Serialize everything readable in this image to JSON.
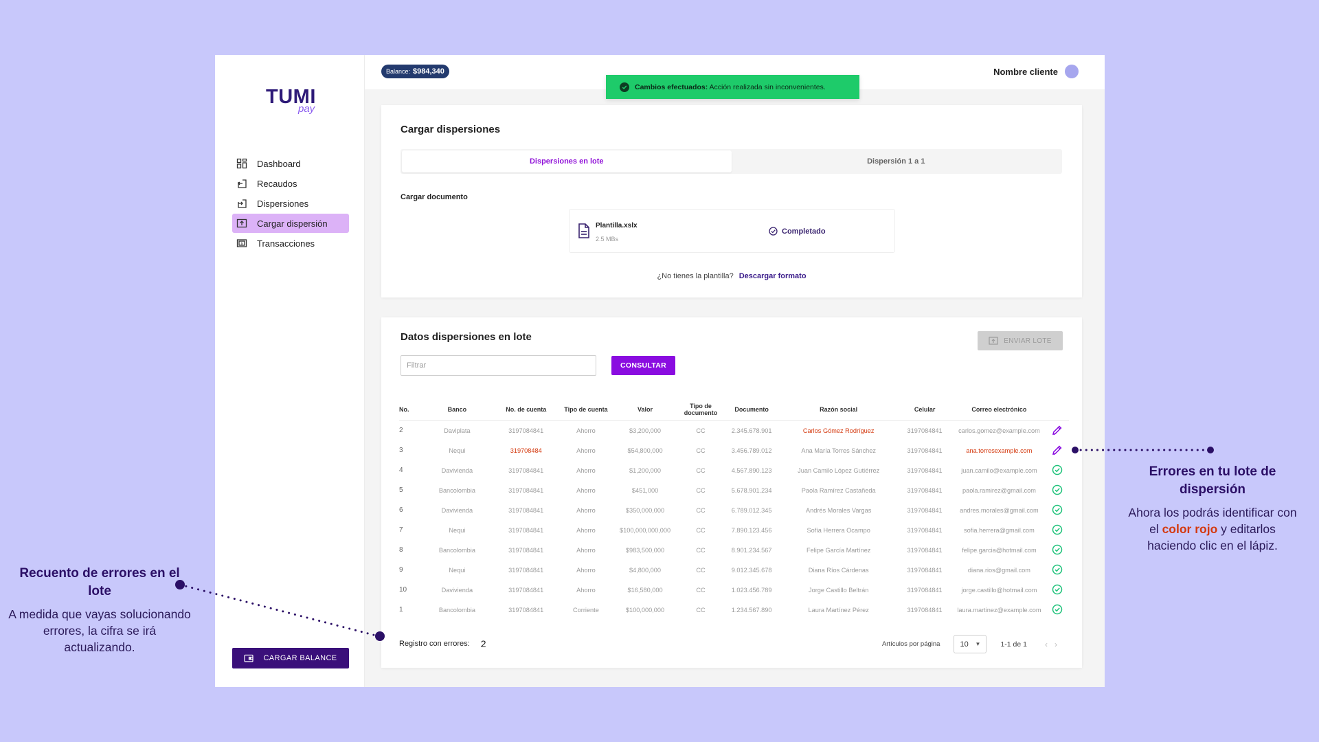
{
  "brand": {
    "name": "TUMI",
    "sub": "pay"
  },
  "sidebar": {
    "items": [
      {
        "label": "Dashboard",
        "icon": "grid-icon",
        "active": false
      },
      {
        "label": "Recaudos",
        "icon": "inbox-arrow-icon",
        "active": false
      },
      {
        "label": "Dispersiones",
        "icon": "outbox-arrow-icon",
        "active": false
      },
      {
        "label": "Cargar dispersión",
        "icon": "upload-icon",
        "active": true
      },
      {
        "label": "Transacciones",
        "icon": "dollar-card-icon",
        "active": false
      }
    ],
    "cargar_balance_label": "CARGAR BALANCE"
  },
  "header": {
    "balance_label": "Balance:",
    "balance_value": "$984,340",
    "client_name": "Nombre cliente"
  },
  "toast": {
    "bold": "Cambios efectuados:",
    "text": "Acción realizada sin inconvenientes."
  },
  "upload": {
    "title": "Cargar dispersiones",
    "tabs": [
      {
        "label": "Dispersiones en lote",
        "active": true
      },
      {
        "label": "Dispersión 1 a 1",
        "active": false
      }
    ],
    "doc_label": "Cargar documento",
    "file": {
      "name": "Plantilla.xslx",
      "size": "2.5 MBs",
      "status": "Completado"
    },
    "template_question": "¿No tienes la plantilla?",
    "template_link": "Descargar formato"
  },
  "table_card": {
    "title": "Datos dispersiones en lote",
    "send_label": "ENVIAR LOTE",
    "filter_placeholder": "Filtrar",
    "consult_label": "CONSULTAR",
    "columns": [
      "No.",
      "Banco",
      "No. de cuenta",
      "Tipo de cuenta",
      "Valor",
      "Tipo de documento",
      "Documento",
      "Razón social",
      "Celular",
      "Correo electrónico",
      ""
    ],
    "rows": [
      {
        "no": "2",
        "banco": "Daviplata",
        "cuenta": "3197084841",
        "tipo": "Ahorro",
        "valor": "$3,200,000",
        "tdoc": "CC",
        "doc": "2.345.678.901",
        "razon": "Carlos Gómez Rodríguez",
        "celular": "3197084841",
        "correo": "carlos.gomez@example.com",
        "status": "error",
        "error_field": "razon"
      },
      {
        "no": "3",
        "banco": "Nequi",
        "cuenta": "319708484",
        "tipo": "Ahorro",
        "valor": "$54,800,000",
        "tdoc": "CC",
        "doc": "3.456.789.012",
        "razon": "Ana María Torres Sánchez",
        "celular": "3197084841",
        "correo": "ana.torresexample.com",
        "status": "error",
        "error_field": "cuenta,correo"
      },
      {
        "no": "4",
        "banco": "Davivienda",
        "cuenta": "3197084841",
        "tipo": "Ahorro",
        "valor": "$1,200,000",
        "tdoc": "CC",
        "doc": "4.567.890.123",
        "razon": "Juan Camilo López Gutiérrez",
        "celular": "3197084841",
        "correo": "juan.camilo@example.com",
        "status": "ok",
        "error_field": ""
      },
      {
        "no": "5",
        "banco": "Bancolombia",
        "cuenta": "3197084841",
        "tipo": "Ahorro",
        "valor": "$451,000",
        "tdoc": "CC",
        "doc": "5.678.901.234",
        "razon": "Paola Ramírez Castañeda",
        "celular": "3197084841",
        "correo": "paola.ramirez@gmail.com",
        "status": "ok",
        "error_field": ""
      },
      {
        "no": "6",
        "banco": "Davivienda",
        "cuenta": "3197084841",
        "tipo": "Ahorro",
        "valor": "$350,000,000",
        "tdoc": "CC",
        "doc": "6.789.012.345",
        "razon": "Andrés Morales Vargas",
        "celular": "3197084841",
        "correo": "andres.morales@gmail.com",
        "status": "ok",
        "error_field": ""
      },
      {
        "no": "7",
        "banco": "Nequi",
        "cuenta": "3197084841",
        "tipo": "Ahorro",
        "valor": "$100,000,000,000",
        "tdoc": "CC",
        "doc": "7.890.123.456",
        "razon": "Sofía Herrera Ocampo",
        "celular": "3197084841",
        "correo": "sofia.herrera@gmail.com",
        "status": "ok",
        "error_field": ""
      },
      {
        "no": "8",
        "banco": "Bancolombia",
        "cuenta": "3197084841",
        "tipo": "Ahorro",
        "valor": "$983,500,000",
        "tdoc": "CC",
        "doc": "8.901.234.567",
        "razon": "Felipe García Martínez",
        "celular": "3197084841",
        "correo": "felipe.garcia@hotmail.com",
        "status": "ok",
        "error_field": ""
      },
      {
        "no": "9",
        "banco": "Nequi",
        "cuenta": "3197084841",
        "tipo": "Ahorro",
        "valor": "$4,800,000",
        "tdoc": "CC",
        "doc": "9.012.345.678",
        "razon": "Diana Ríos Cárdenas",
        "celular": "3197084841",
        "correo": "diana.rios@gmail.com",
        "status": "ok",
        "error_field": ""
      },
      {
        "no": "10",
        "banco": "Davivienda",
        "cuenta": "3197084841",
        "tipo": "Ahorro",
        "valor": "$16,580,000",
        "tdoc": "CC",
        "doc": "1.023.456.789",
        "razon": "Jorge Castillo Beltrán",
        "celular": "3197084841",
        "correo": "jorge.castillo@hotmail.com",
        "status": "ok",
        "error_field": ""
      },
      {
        "no": "1",
        "banco": "Bancolombia",
        "cuenta": "3197084841",
        "tipo": "Corriente",
        "valor": "$100,000,000",
        "tdoc": "CC",
        "doc": "1.234.567.890",
        "razon": "Laura Martínez Pérez",
        "celular": "3197084841",
        "correo": "laura.martinez@example.com",
        "status": "ok",
        "error_field": ""
      }
    ],
    "error_label": "Registro con errores:",
    "error_count": "2",
    "per_page_label": "Artículos por página",
    "per_page_value": "10",
    "range": "1-1 de 1"
  },
  "annotations": {
    "left": {
      "title": "Recuento de errores en el lote",
      "body": "A medida que vayas solucionando errores, la cifra se irá actualizando."
    },
    "right": {
      "title": "Errores en tu lote de dispersión",
      "body_before": "Ahora los podrás identificar con el",
      "body_highlight": "color rojo",
      "body_after": "y editarlos haciendo clic en el lápiz."
    }
  },
  "colors": {
    "background": "#c8c8fb",
    "brand_dark": "#3a0f7a",
    "accent_purple": "#8a0ce0",
    "active_nav": "#dcb2f7",
    "success": "#1ecb6a",
    "error": "#d4380d"
  }
}
